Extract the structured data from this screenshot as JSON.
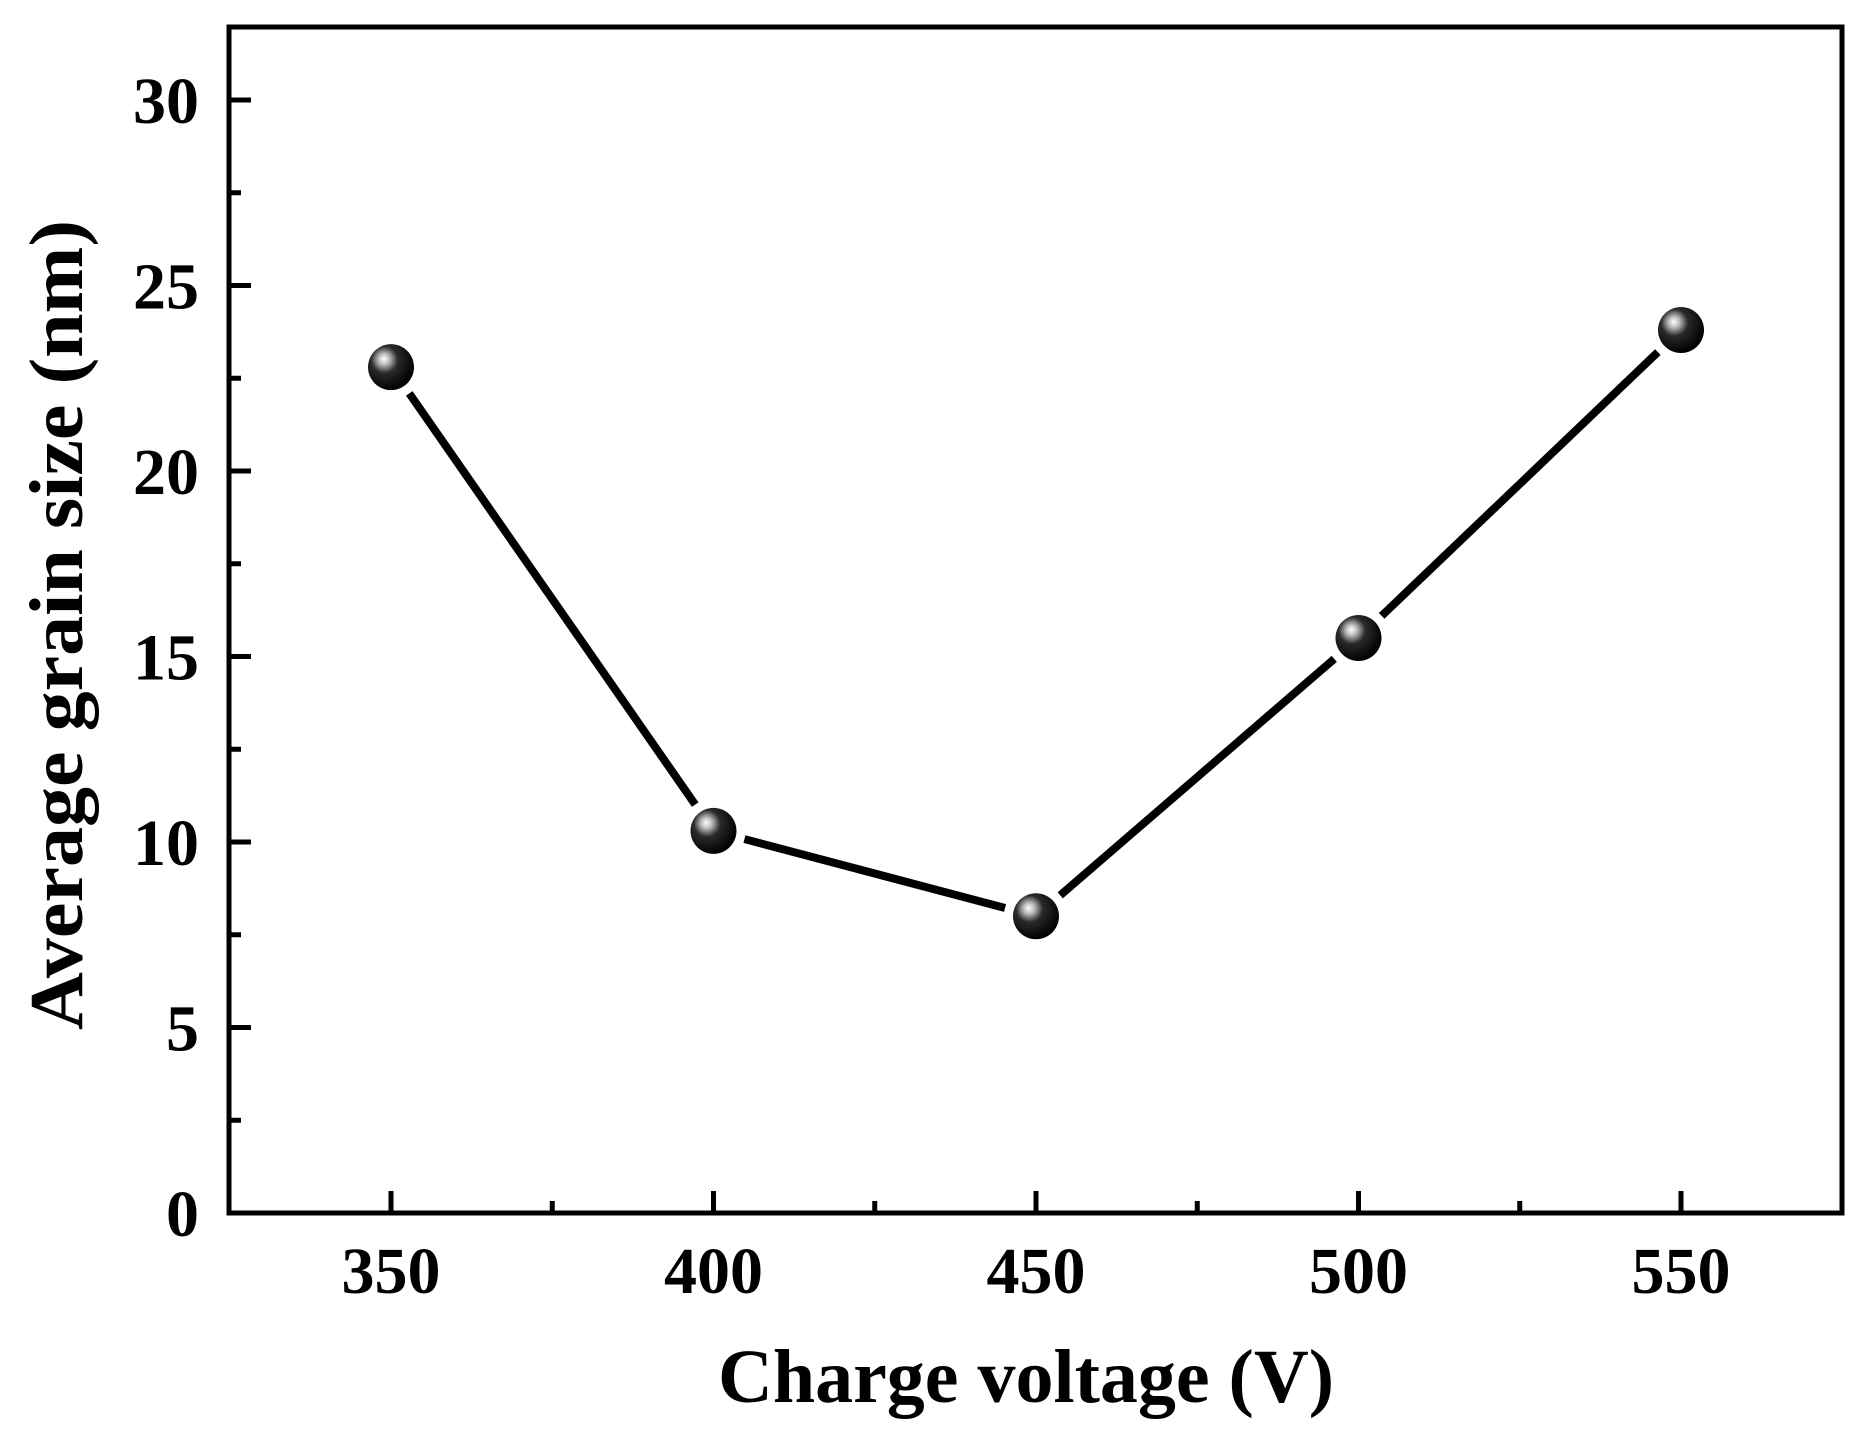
{
  "chart_data": {
    "type": "line",
    "title": "",
    "xlabel": "Charge voltage (V)",
    "ylabel": "Average grain size (nm)",
    "x": [
      350,
      400,
      450,
      500,
      550
    ],
    "series": [
      {
        "name": "Average grain size",
        "values": [
          22.8,
          10.3,
          8.0,
          15.5,
          23.8
        ],
        "marker": "sphere",
        "line_color": "#000000",
        "marker_color": "#000000"
      }
    ],
    "xlim": [
      325.5,
      575.2
    ],
    "ylim": [
      0,
      31.9
    ],
    "xticks": [
      350,
      400,
      450,
      500,
      550
    ],
    "xtick_labels": [
      "350",
      "400",
      "450",
      "500",
      "550"
    ],
    "x_minor_ticks": [
      375,
      425,
      475,
      525
    ],
    "yticks": [
      0,
      5,
      10,
      15,
      20,
      25,
      30
    ],
    "ytick_labels": [
      "0",
      "5",
      "10",
      "15",
      "20",
      "25",
      "30"
    ],
    "y_minor_ticks": [
      2.5,
      7.5,
      12.5,
      17.5,
      22.5,
      27.5
    ],
    "grid": false,
    "legend": null,
    "frame": "box"
  },
  "labels": {
    "x_axis_title": "Charge voltage (V)",
    "y_axis_title": "Average grain size (nm)"
  },
  "colors": {
    "background": "#ffffff",
    "axis": "#000000",
    "line": "#000000",
    "marker": "#000000",
    "marker_highlight": "#ffffff"
  }
}
